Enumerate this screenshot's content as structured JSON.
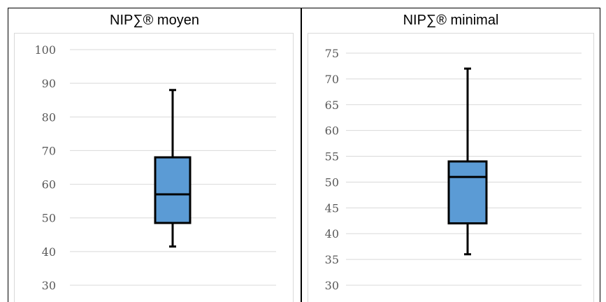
{
  "colors": {
    "box_fill": "#5b9bd5",
    "box_stroke": "#000000",
    "gridline": "#d9d9d9",
    "tick_label": "#595959"
  },
  "chart_data": [
    {
      "type": "box",
      "title": "NIP∑® moyen",
      "xlabel": "",
      "ylabel": "",
      "ylim": [
        30,
        100
      ],
      "yticks": [
        "100",
        "90",
        "80",
        "70",
        "60",
        "50",
        "40",
        "30"
      ],
      "grid": true,
      "legend": "none",
      "box": {
        "min": 41.5,
        "q1": 48.5,
        "median": 57,
        "q3": 68,
        "max": 88
      }
    },
    {
      "type": "box",
      "title": "NIP∑® minimal",
      "xlabel": "",
      "ylabel": "",
      "ylim": [
        30,
        75
      ],
      "yticks": [
        "75",
        "70",
        "65",
        "60",
        "55",
        "50",
        "45",
        "40",
        "35",
        "30"
      ],
      "grid": true,
      "legend": "none",
      "box": {
        "min": 36,
        "q1": 42,
        "median": 51,
        "q3": 54,
        "max": 72
      }
    }
  ]
}
